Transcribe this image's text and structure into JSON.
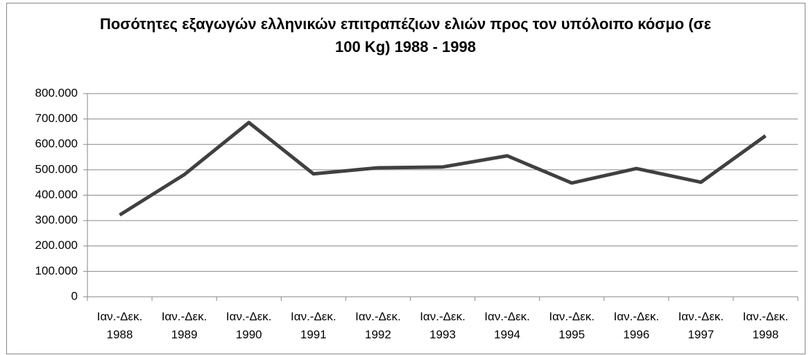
{
  "chart_data": {
    "type": "line",
    "title": "Ποσότητες εξαγωγών ελληνικών επιτραπέζιων ελιών προς τον υπόλοιπο κόσμο (σε 100 Kg) 1988 - 1998",
    "categories": [
      [
        "Ιαν.-Δεκ.",
        "1988"
      ],
      [
        "Ιαν.-Δεκ.",
        "1989"
      ],
      [
        "Ιαν.-Δεκ.",
        "1990"
      ],
      [
        "Ιαν.-Δεκ.",
        "1991"
      ],
      [
        "Ιαν.-Δεκ.",
        "1992"
      ],
      [
        "Ιαν.-Δεκ.",
        "1993"
      ],
      [
        "Ιαν.-Δεκ.",
        "1994"
      ],
      [
        "Ιαν.-Δεκ.",
        "1995"
      ],
      [
        "Ιαν.-Δεκ.",
        "1996"
      ],
      [
        "Ιαν.-Δεκ.",
        "1997"
      ],
      [
        "Ιαν.-Δεκ.",
        "1998"
      ]
    ],
    "values": [
      322000,
      481000,
      686000,
      484000,
      508000,
      511000,
      555000,
      448000,
      505000,
      451000,
      634000
    ],
    "color": "#404040",
    "ylim": [
      0,
      800000
    ],
    "yticks": [
      0,
      {
        "value": 100000,
        "label": "100.000"
      },
      {
        "value": 200000,
        "label": "200.000"
      },
      {
        "value": 300000,
        "label": "300.000"
      },
      {
        "value": 400000,
        "label": "400.000"
      },
      {
        "value": 500000,
        "label": "500.000"
      },
      {
        "value": 600000,
        "label": "600.000"
      },
      {
        "value": 700000,
        "label": "700.000"
      },
      {
        "value": 800000,
        "label": "800.000"
      }
    ],
    "grid": true
  }
}
